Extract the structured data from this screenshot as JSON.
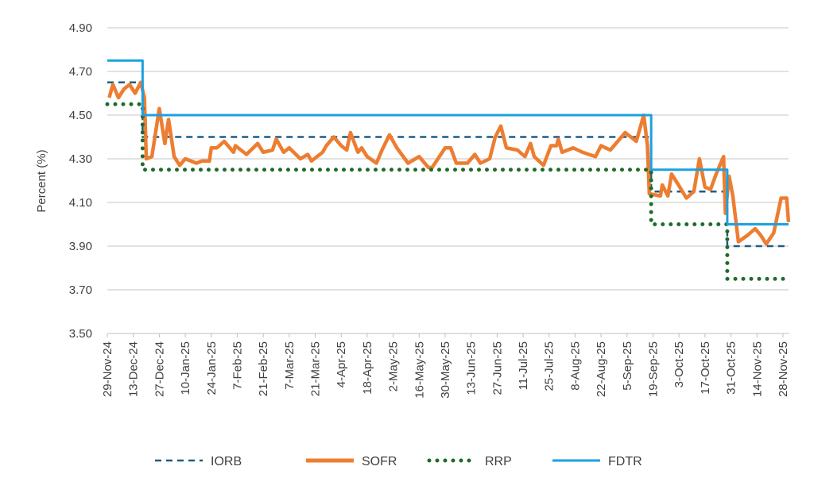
{
  "chart_data": {
    "type": "line",
    "title": "",
    "xlabel": "",
    "ylabel": "Percent (%)",
    "ylim": [
      3.5,
      4.9
    ],
    "yticks": [
      "3.50",
      "3.70",
      "3.90",
      "4.10",
      "4.30",
      "4.50",
      "4.70",
      "4.90"
    ],
    "x_unit": "days since 29-Nov-24",
    "x_end_day": 367,
    "xticks": [
      "29-Nov-24",
      "13-Dec-24",
      "27-Dec-24",
      "10-Jan-25",
      "24-Jan-25",
      "7-Feb-25",
      "21-Feb-25",
      "7-Mar-25",
      "21-Mar-25",
      "4-Apr-25",
      "18-Apr-25",
      "2-May-25",
      "16-May-25",
      "30-May-25",
      "13-Jun-25",
      "27-Jun-25",
      "11-Jul-25",
      "25-Jul-25",
      "8-Aug-25",
      "22-Aug-25",
      "5-Sep-25",
      "19-Sep-25",
      "3-Oct-25",
      "17-Oct-25",
      "31-Oct-25",
      "14-Nov-25",
      "28-Nov-25"
    ],
    "grid": true,
    "legend_position": "bottom",
    "series": [
      {
        "name": "IORB",
        "color": "#1f5c85",
        "style": "dashed",
        "steps": [
          [
            0,
            4.65
          ],
          [
            19,
            4.4
          ],
          [
            293,
            4.15
          ],
          [
            334,
            3.9
          ]
        ]
      },
      {
        "name": "SOFR",
        "color": "#ed7d31",
        "style": "solid",
        "points": [
          [
            1,
            4.58
          ],
          [
            3,
            4.64
          ],
          [
            6,
            4.58
          ],
          [
            9,
            4.62
          ],
          [
            12,
            4.64
          ],
          [
            15,
            4.6
          ],
          [
            18,
            4.65
          ],
          [
            20,
            4.58
          ],
          [
            21,
            4.3
          ],
          [
            24,
            4.31
          ],
          [
            28,
            4.53
          ],
          [
            31,
            4.37
          ],
          [
            33,
            4.48
          ],
          [
            36,
            4.31
          ],
          [
            39,
            4.27
          ],
          [
            42,
            4.3
          ],
          [
            48,
            4.28
          ],
          [
            51,
            4.29
          ],
          [
            55,
            4.29
          ],
          [
            56,
            4.35
          ],
          [
            59,
            4.35
          ],
          [
            63,
            4.38
          ],
          [
            68,
            4.33
          ],
          [
            69,
            4.36
          ],
          [
            75,
            4.32
          ],
          [
            81,
            4.37
          ],
          [
            84,
            4.33
          ],
          [
            89,
            4.34
          ],
          [
            91,
            4.39
          ],
          [
            95,
            4.33
          ],
          [
            98,
            4.35
          ],
          [
            104,
            4.3
          ],
          [
            108,
            4.32
          ],
          [
            110,
            4.29
          ],
          [
            116,
            4.33
          ],
          [
            118,
            4.36
          ],
          [
            122,
            4.4
          ],
          [
            126,
            4.36
          ],
          [
            129,
            4.34
          ],
          [
            131,
            4.42
          ],
          [
            135,
            4.33
          ],
          [
            137,
            4.35
          ],
          [
            140,
            4.31
          ],
          [
            145,
            4.28
          ],
          [
            148,
            4.34
          ],
          [
            152,
            4.41
          ],
          [
            156,
            4.35
          ],
          [
            162,
            4.28
          ],
          [
            168,
            4.31
          ],
          [
            173,
            4.26
          ],
          [
            175,
            4.26
          ],
          [
            182,
            4.35
          ],
          [
            185,
            4.35
          ],
          [
            188,
            4.28
          ],
          [
            194,
            4.28
          ],
          [
            198,
            4.32
          ],
          [
            201,
            4.28
          ],
          [
            206,
            4.3
          ],
          [
            209,
            4.4
          ],
          [
            212,
            4.45
          ],
          [
            215,
            4.35
          ],
          [
            221,
            4.34
          ],
          [
            225,
            4.31
          ],
          [
            228,
            4.37
          ],
          [
            230,
            4.31
          ],
          [
            235,
            4.27
          ],
          [
            239,
            4.36
          ],
          [
            242,
            4.36
          ],
          [
            243,
            4.39
          ],
          [
            245,
            4.33
          ],
          [
            251,
            4.35
          ],
          [
            256,
            4.33
          ],
          [
            263,
            4.31
          ],
          [
            266,
            4.36
          ],
          [
            271,
            4.34
          ],
          [
            279,
            4.42
          ],
          [
            285,
            4.38
          ],
          [
            289,
            4.5
          ],
          [
            291,
            4.36
          ],
          [
            292,
            4.14
          ],
          [
            298,
            4.13
          ],
          [
            299,
            4.18
          ],
          [
            302,
            4.13
          ],
          [
            304,
            4.23
          ],
          [
            307,
            4.19
          ],
          [
            312,
            4.12
          ],
          [
            316,
            4.15
          ],
          [
            319,
            4.3
          ],
          [
            322,
            4.17
          ],
          [
            325,
            4.16
          ],
          [
            328,
            4.23
          ],
          [
            332,
            4.31
          ],
          [
            333,
            4.05
          ],
          [
            335,
            4.22
          ],
          [
            337,
            4.13
          ],
          [
            340,
            3.92
          ],
          [
            345,
            3.95
          ],
          [
            349,
            3.98
          ],
          [
            352,
            3.95
          ],
          [
            355,
            3.91
          ],
          [
            359,
            3.96
          ],
          [
            363,
            4.12
          ],
          [
            366,
            4.12
          ],
          [
            367,
            4.01
          ]
        ]
      },
      {
        "name": "RRP",
        "color": "#1e6b2a",
        "style": "dotted",
        "steps": [
          [
            0,
            4.55
          ],
          [
            19,
            4.25
          ],
          [
            293,
            4.0
          ],
          [
            334,
            3.75
          ]
        ]
      },
      {
        "name": "FDTR",
        "color": "#1ba1e2",
        "style": "solid",
        "steps": [
          [
            0,
            4.75
          ],
          [
            19,
            4.5
          ],
          [
            293,
            4.25
          ],
          [
            334,
            4.0
          ]
        ]
      }
    ]
  }
}
